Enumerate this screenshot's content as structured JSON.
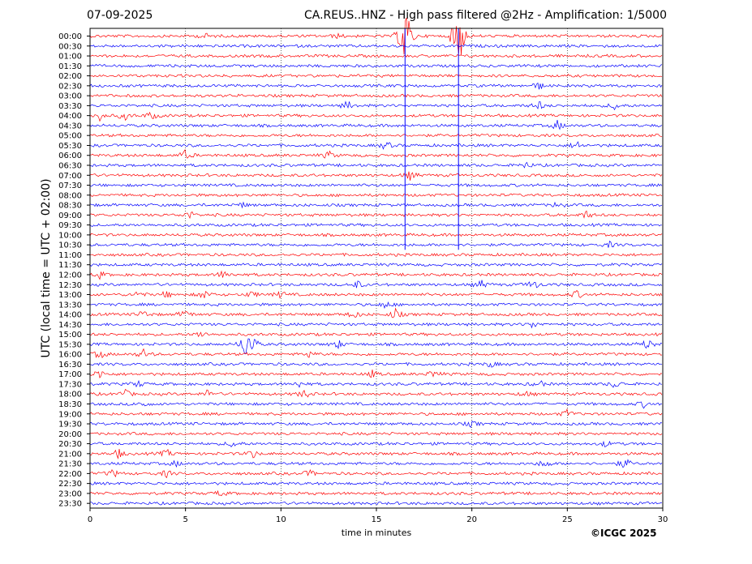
{
  "header": {
    "date": "07-09-2025",
    "title": "CA.REUS..HNZ - High pass filtered @2Hz - Amplification: 1/5000"
  },
  "copyright": "©ICGC 2025",
  "chart_data": {
    "type": "line",
    "title": "CA.REUS..HNZ - High pass filtered @2Hz - Amplification: 1/5000",
    "xlabel": "time in minutes",
    "ylabel": "UTC (local time = UTC + 02:00)",
    "xlim": [
      0,
      30
    ],
    "xticks": [
      0,
      5,
      10,
      15,
      20,
      25,
      30
    ],
    "grid": "vertical dotted at x ticks",
    "trace_colors": [
      "#ff0000",
      "#0000ff"
    ],
    "rows": [
      "00:00",
      "00:30",
      "01:00",
      "01:30",
      "02:00",
      "02:30",
      "03:00",
      "03:30",
      "04:00",
      "04:30",
      "05:00",
      "05:30",
      "06:00",
      "06:30",
      "07:00",
      "07:30",
      "08:00",
      "08:30",
      "09:00",
      "09:30",
      "10:00",
      "10:30",
      "11:00",
      "11:30",
      "12:00",
      "12:30",
      "13:00",
      "13:30",
      "14:00",
      "14:30",
      "15:00",
      "15:30",
      "16:00",
      "16:30",
      "17:00",
      "17:30",
      "18:00",
      "18:30",
      "19:00",
      "19:30",
      "20:00",
      "20:30",
      "21:00",
      "21:30",
      "22:00",
      "22:30",
      "23:00",
      "23:30"
    ],
    "events": [
      {
        "row": "00:00",
        "minute": 6.0,
        "amp": 0.5
      },
      {
        "row": "00:00",
        "minute": 13.0,
        "amp": 0.35
      },
      {
        "row": "00:00",
        "minute": 16.5,
        "amp": 7.0
      },
      {
        "row": "00:00",
        "minute": 19.3,
        "amp": 7.0
      },
      {
        "row": "02:30",
        "minute": 23.5,
        "amp": 0.6
      },
      {
        "row": "03:30",
        "minute": 13.5,
        "amp": 0.8
      },
      {
        "row": "03:30",
        "minute": 23.5,
        "amp": 0.8
      },
      {
        "row": "03:30",
        "minute": 27.5,
        "amp": 0.7
      },
      {
        "row": "04:00",
        "minute": 0.5,
        "amp": 0.8
      },
      {
        "row": "04:00",
        "minute": 1.8,
        "amp": 0.8
      },
      {
        "row": "04:00",
        "minute": 3.2,
        "amp": 0.7
      },
      {
        "row": "04:30",
        "minute": 24.5,
        "amp": 0.9
      },
      {
        "row": "05:30",
        "minute": 15.5,
        "amp": 0.8
      },
      {
        "row": "05:30",
        "minute": 25.5,
        "amp": 0.8
      },
      {
        "row": "06:00",
        "minute": 5.0,
        "amp": 0.9
      },
      {
        "row": "06:00",
        "minute": 12.5,
        "amp": 0.7
      },
      {
        "row": "06:30",
        "minute": 22.8,
        "amp": 0.6
      },
      {
        "row": "07:00",
        "minute": 16.8,
        "amp": 0.8
      },
      {
        "row": "08:30",
        "minute": 8.0,
        "amp": 0.4
      },
      {
        "row": "08:30",
        "minute": 24.5,
        "amp": 0.6
      },
      {
        "row": "09:00",
        "minute": 5.2,
        "amp": 0.7
      },
      {
        "row": "09:00",
        "minute": 26.0,
        "amp": 0.7
      },
      {
        "row": "10:30",
        "minute": 27.2,
        "amp": 0.5
      },
      {
        "row": "12:00",
        "minute": 7.0,
        "amp": 0.8
      },
      {
        "row": "12:00",
        "minute": 0.5,
        "amp": 0.6
      },
      {
        "row": "12:30",
        "minute": 14.0,
        "amp": 0.7
      },
      {
        "row": "12:30",
        "minute": 20.5,
        "amp": 0.7
      },
      {
        "row": "12:30",
        "minute": 23.2,
        "amp": 0.9
      },
      {
        "row": "13:00",
        "minute": 2.5,
        "amp": 0.6
      },
      {
        "row": "13:00",
        "minute": 4.0,
        "amp": 0.6
      },
      {
        "row": "13:00",
        "minute": 6.0,
        "amp": 0.8
      },
      {
        "row": "13:00",
        "minute": 8.5,
        "amp": 0.6
      },
      {
        "row": "13:00",
        "minute": 10.0,
        "amp": 0.6
      },
      {
        "row": "13:00",
        "minute": 25.5,
        "amp": 0.7
      },
      {
        "row": "13:30",
        "minute": 15.5,
        "amp": 0.7
      },
      {
        "row": "14:00",
        "minute": 2.8,
        "amp": 0.7
      },
      {
        "row": "14:00",
        "minute": 5.0,
        "amp": 0.8
      },
      {
        "row": "14:00",
        "minute": 13.8,
        "amp": 0.7
      },
      {
        "row": "14:00",
        "minute": 16.0,
        "amp": 0.9
      },
      {
        "row": "14:30",
        "minute": 23.2,
        "amp": 0.6
      },
      {
        "row": "15:00",
        "minute": 5.8,
        "amp": 0.6
      },
      {
        "row": "15:30",
        "minute": 8.2,
        "amp": 3.0
      },
      {
        "row": "15:30",
        "minute": 8.5,
        "amp": 1.0
      },
      {
        "row": "15:30",
        "minute": 13.0,
        "amp": 0.7
      },
      {
        "row": "15:30",
        "minute": 29.2,
        "amp": 1.0
      },
      {
        "row": "16:00",
        "minute": 0.5,
        "amp": 0.8
      },
      {
        "row": "16:00",
        "minute": 2.8,
        "amp": 0.8
      },
      {
        "row": "16:00",
        "minute": 11.5,
        "amp": 0.6
      },
      {
        "row": "16:30",
        "minute": 21.0,
        "amp": 0.5
      },
      {
        "row": "17:00",
        "minute": 0.5,
        "amp": 0.8
      },
      {
        "row": "17:00",
        "minute": 14.8,
        "amp": 0.6
      },
      {
        "row": "17:00",
        "minute": 18.0,
        "amp": 0.7
      },
      {
        "row": "17:30",
        "minute": 2.5,
        "amp": 0.6
      },
      {
        "row": "17:30",
        "minute": 11.0,
        "amp": 0.6
      },
      {
        "row": "17:30",
        "minute": 23.5,
        "amp": 0.7
      },
      {
        "row": "17:30",
        "minute": 27.5,
        "amp": 0.7
      },
      {
        "row": "18:00",
        "minute": 1.8,
        "amp": 0.8
      },
      {
        "row": "18:00",
        "minute": 11.2,
        "amp": 0.8
      },
      {
        "row": "18:00",
        "minute": 6.2,
        "amp": 0.8
      },
      {
        "row": "18:00",
        "minute": 22.8,
        "amp": 0.5
      },
      {
        "row": "18:30",
        "minute": 2.8,
        "amp": 0.5
      },
      {
        "row": "18:30",
        "minute": 29.0,
        "amp": 0.5
      },
      {
        "row": "19:00",
        "minute": 25.0,
        "amp": 0.7
      },
      {
        "row": "19:30",
        "minute": 20.0,
        "amp": 0.5
      },
      {
        "row": "20:30",
        "minute": 7.5,
        "amp": 0.7
      },
      {
        "row": "20:30",
        "minute": 27.0,
        "amp": 0.5
      },
      {
        "row": "21:00",
        "minute": 1.5,
        "amp": 0.8
      },
      {
        "row": "21:00",
        "minute": 4.0,
        "amp": 0.7
      },
      {
        "row": "21:00",
        "minute": 8.5,
        "amp": 0.8
      },
      {
        "row": "21:30",
        "minute": 4.5,
        "amp": 0.5
      },
      {
        "row": "21:30",
        "minute": 23.8,
        "amp": 0.8
      },
      {
        "row": "21:30",
        "minute": 28.0,
        "amp": 1.0
      },
      {
        "row": "22:00",
        "minute": 1.2,
        "amp": 0.7
      },
      {
        "row": "22:00",
        "minute": 4.0,
        "amp": 0.6
      },
      {
        "row": "22:00",
        "minute": 11.5,
        "amp": 0.6
      },
      {
        "row": "23:00",
        "minute": 6.8,
        "amp": 0.5
      }
    ]
  }
}
